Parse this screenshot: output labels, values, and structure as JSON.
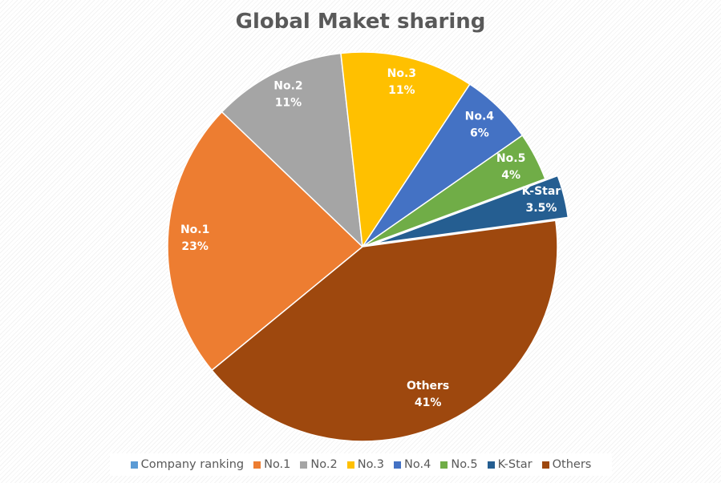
{
  "chart_data": {
    "type": "pie",
    "title": "Global Maket sharing",
    "slices": [
      {
        "name": "Company ranking",
        "value": 0,
        "label": "",
        "color": "#5B9BD5"
      },
      {
        "name": "No.1",
        "value": 23,
        "label": "23%",
        "color": "#ED7D31"
      },
      {
        "name": "No.2",
        "value": 11,
        "label": "11%",
        "color": "#A5A5A5"
      },
      {
        "name": "No.3",
        "value": 11,
        "label": "11%",
        "color": "#FFC000"
      },
      {
        "name": "No.4",
        "value": 6,
        "label": "6%",
        "color": "#4472C4"
      },
      {
        "name": "No.5",
        "value": 4,
        "label": "4%",
        "color": "#70AD47"
      },
      {
        "name": "K-Star",
        "value": 3.5,
        "label": "3.5%",
        "color": "#255E91",
        "exploded": true
      },
      {
        "name": "Others",
        "value": 41,
        "label": "41%",
        "color": "#9E480E"
      }
    ],
    "legend_position": "bottom"
  }
}
